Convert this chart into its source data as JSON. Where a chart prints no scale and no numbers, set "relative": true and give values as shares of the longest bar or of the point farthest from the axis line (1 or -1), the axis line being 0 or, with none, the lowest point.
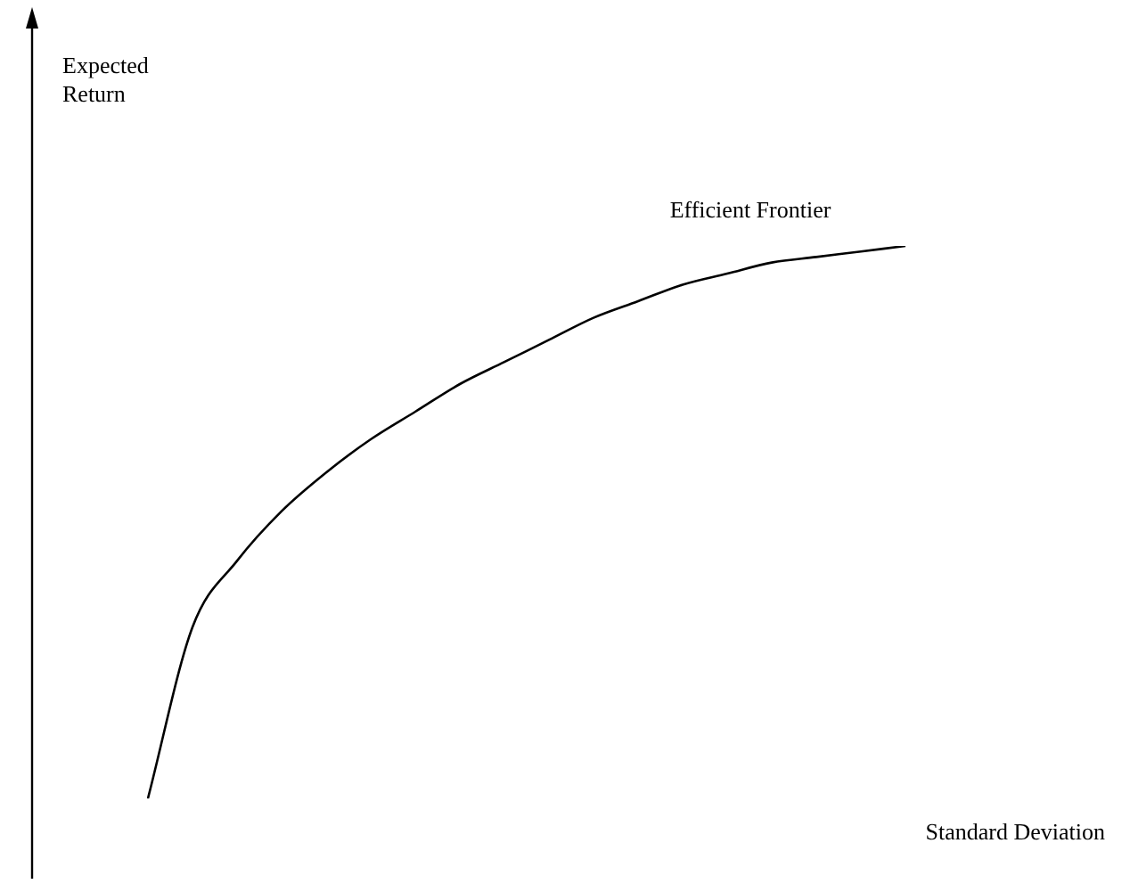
{
  "chart_data": {
    "type": "line",
    "relative": true,
    "xlabel": "Standard Deviation",
    "annotations": [
      "Expected Return",
      "Efficient Frontier"
    ],
    "categories": [
      null,
      null,
      null,
      null,
      null,
      null,
      null,
      null,
      null,
      null,
      null,
      null,
      null,
      null,
      null,
      null,
      null,
      null
    ],
    "values": [
      0,
      0.31,
      0.43,
      0.52,
      0.59,
      0.65,
      0.7,
      0.75,
      0.79,
      0.83,
      0.87,
      0.9,
      0.93,
      0.95,
      0.97,
      0.98,
      0.99,
      1
    ],
    "color": "#000000",
    "line_style": "solid",
    "marker": "none",
    "legend": false
  }
}
